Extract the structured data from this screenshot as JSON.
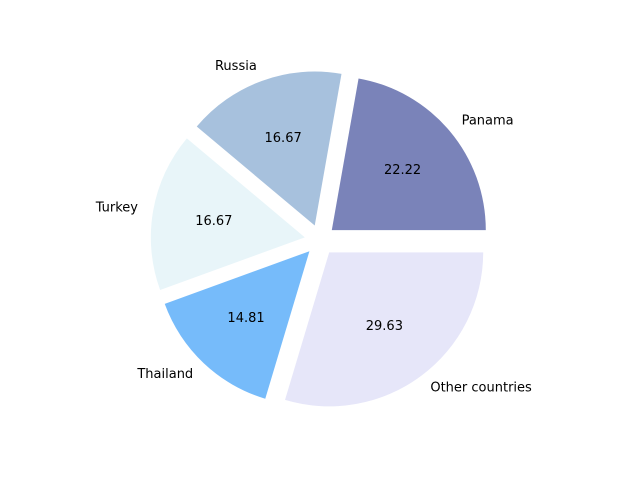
{
  "chart_data": {
    "type": "pie",
    "title": "",
    "slices": [
      {
        "label": "Panama",
        "value": 22.22,
        "value_label": "22.22",
        "color": "#7a83b9"
      },
      {
        "label": "Russia",
        "value": 16.67,
        "value_label": "16.67",
        "color": "#a7c1dd"
      },
      {
        "label": "Turkey",
        "value": 16.67,
        "value_label": "16.67",
        "color": "#e8f5f9"
      },
      {
        "label": "Thailand",
        "value": 14.81,
        "value_label": "14.81",
        "color": "#76bbfa"
      },
      {
        "label": "Other countries",
        "value": 29.63,
        "value_label": "29.63",
        "color": "#e6e6f9"
      }
    ],
    "start_angle_deg": 0,
    "direction": "counterclockwise",
    "exploded": true,
    "legend": "none"
  }
}
